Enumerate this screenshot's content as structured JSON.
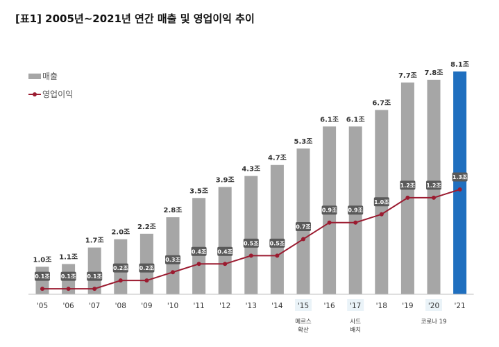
{
  "title": "[표1] 2005년~2021년 연간 매출 및 영업이익 추이",
  "chart_data": {
    "type": "bar",
    "title": "[표1] 2005년~2021년 연간 매출 및 영업이익 추이",
    "xlabel": "",
    "ylabel": "",
    "legend_position": "top-left",
    "categories": [
      "'05",
      "'06",
      "'07",
      "'08",
      "'09",
      "'10",
      "'11",
      "'12",
      "'13",
      "'14",
      "'15",
      "'16",
      "'17",
      "'18",
      "'19",
      "'20",
      "'21"
    ],
    "series": [
      {
        "name": "매출",
        "type": "bar",
        "unit": "조",
        "color": "#A6A6A6",
        "highlight_color": "#1F6FBF",
        "highlight_index": 16,
        "values": [
          1.0,
          1.1,
          1.7,
          2.0,
          2.2,
          2.8,
          3.5,
          3.9,
          4.3,
          4.7,
          5.3,
          6.1,
          6.1,
          6.7,
          7.7,
          7.8,
          8.1
        ],
        "labels": [
          "1.0조",
          "1.1조",
          "1.7조",
          "2.0조",
          "2.2조",
          "2.8조",
          "3.5조",
          "3.9조",
          "4.3조",
          "4.7조",
          "5.3조",
          "6.1조",
          "6.1조",
          "6.7조",
          "7.7조",
          "7.8조",
          "8.1조"
        ]
      },
      {
        "name": "영업이익",
        "type": "line",
        "unit": "조",
        "color": "#9B1B30",
        "values": [
          0.1,
          0.1,
          0.1,
          0.2,
          0.2,
          0.3,
          0.4,
          0.4,
          0.5,
          0.5,
          0.7,
          0.9,
          0.9,
          1.0,
          1.2,
          1.2,
          1.3
        ],
        "labels": [
          "0.1조",
          "0.1조",
          "0.1조",
          "0.2조",
          "0.2조",
          "0.3조",
          "0.4조",
          "0.4조",
          "0.5조",
          "0.5조",
          "0.7조",
          "0.9조",
          "0.9조",
          "1.0조",
          "1.2조",
          "1.2조",
          "1.3조"
        ]
      }
    ],
    "annotations": [
      {
        "index": 10,
        "lines": [
          "메르스",
          "확산"
        ]
      },
      {
        "index": 12,
        "lines": [
          "사드",
          "배치"
        ]
      },
      {
        "index": 15,
        "lines": [
          "코로나 19"
        ]
      }
    ],
    "highlight_categories": [
      10,
      12,
      15
    ],
    "colors": {
      "bar": "#A6A6A6",
      "bar_highlight": "#1F6FBF",
      "line": "#9B1B30",
      "label_box": "#595959",
      "tick_highlight_bg": "#EAF3F8"
    }
  }
}
